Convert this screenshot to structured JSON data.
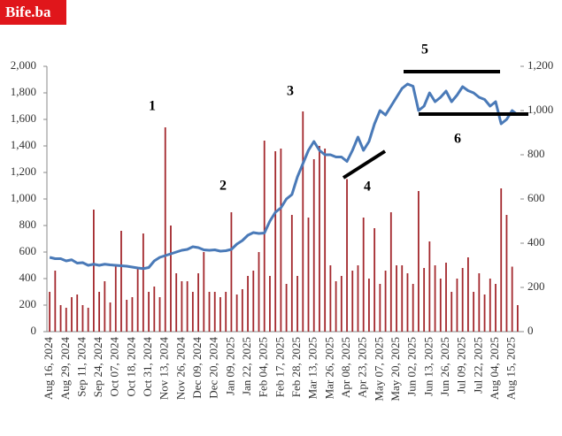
{
  "chart_data": {
    "type": "bar_line",
    "title": "Bife.ba",
    "annotations": [
      "1",
      "2",
      "3",
      "4",
      "5",
      "6"
    ],
    "categories": [
      "Aug 16, 2024",
      null,
      null,
      "Aug 29, 2024",
      null,
      null,
      "Sep 11, 2024",
      null,
      null,
      "Sep 24, 2024",
      null,
      null,
      "Oct 07, 2024",
      null,
      null,
      "Oct 18, 2024",
      null,
      null,
      "Oct 31, 2024",
      null,
      null,
      "Nov 13, 2024",
      null,
      null,
      "Nov 26, 2024",
      null,
      null,
      "Dec 09, 2024",
      null,
      null,
      "Dec 20, 2024",
      null,
      null,
      "Jan 09, 2025",
      null,
      null,
      "Jan 22, 2025",
      null,
      null,
      "Feb 04, 2025",
      null,
      null,
      "Feb 17, 2025",
      null,
      null,
      "Feb 28, 2025",
      null,
      null,
      "Mar 13, 2025",
      null,
      null,
      "Mar 26, 2025",
      null,
      null,
      "Apr 08, 2025",
      null,
      null,
      "Apr 23, 2025",
      null,
      null,
      "May 07, 2025",
      null,
      null,
      "May 20, 2025",
      null,
      null,
      "Jun 02, 2025",
      null,
      null,
      "Jun 13, 2025",
      null,
      null,
      "Jun 26, 2025",
      null,
      null,
      "Jul 09, 2025",
      null,
      null,
      "Jul 22, 2025",
      null,
      null,
      "Aug 04, 2025",
      null,
      null,
      "Aug 15, 2025",
      null
    ],
    "series": [
      {
        "type": "bar",
        "color": "#a3282d",
        "values": [
          300,
          460,
          200,
          180,
          260,
          280,
          200,
          180,
          920,
          300,
          380,
          220,
          500,
          760,
          240,
          260,
          480,
          740,
          300,
          340,
          260,
          1540,
          800,
          440,
          380,
          380,
          300,
          440,
          600,
          300,
          300,
          260,
          300,
          900,
          280,
          320,
          420,
          460,
          600,
          1440,
          420,
          1360,
          1380,
          360,
          880,
          420,
          1660,
          860,
          1300,
          1400,
          1380,
          500,
          380,
          420,
          1150,
          460,
          500,
          860,
          400,
          780,
          360,
          460,
          900,
          500,
          500,
          440,
          360,
          1060,
          480,
          680,
          500,
          400,
          520,
          300,
          400,
          480,
          560,
          300,
          440,
          280,
          400,
          360,
          1080,
          880,
          490,
          200
        ]
      },
      {
        "type": "line",
        "axis": "y2",
        "color": "#4a7ab8",
        "values": [
          336,
          330,
          330,
          320,
          325,
          310,
          312,
          300,
          305,
          300,
          305,
          302,
          300,
          298,
          296,
          292,
          288,
          285,
          290,
          320,
          336,
          344,
          352,
          360,
          368,
          372,
          384,
          380,
          370,
          368,
          370,
          364,
          366,
          372,
          396,
          412,
          436,
          448,
          444,
          446,
          500,
          540,
          560,
          600,
          620,
          700,
          760,
          820,
          860,
          820,
          800,
          800,
          790,
          790,
          770,
          820,
          880,
          820,
          860,
          940,
          1000,
          980,
          1020,
          1060,
          1100,
          1120,
          1110,
          1000,
          1020,
          1080,
          1040,
          1060,
          1088,
          1040,
          1070,
          1108,
          1090,
          1080,
          1060,
          1050,
          1020,
          1040,
          940,
          960,
          1000,
          980
        ]
      }
    ],
    "ylim": [
      0,
      2000
    ],
    "yticks": [
      0,
      200,
      400,
      600,
      800,
      {
        "value": 1000,
        "label": "1,000"
      },
      {
        "value": 1200,
        "label": "1,200"
      },
      {
        "value": 1400,
        "label": "1,400"
      },
      {
        "value": 1600,
        "label": "1,600"
      },
      {
        "value": 1800,
        "label": "1,800"
      },
      {
        "value": 2000,
        "label": "2,000"
      }
    ],
    "y2lim": [
      0,
      1200
    ],
    "y2ticks": [
      0,
      200,
      400,
      600,
      800,
      {
        "value": 1000,
        "label": "1,000"
      },
      {
        "value": 1200,
        "label": "1,200"
      }
    ]
  }
}
